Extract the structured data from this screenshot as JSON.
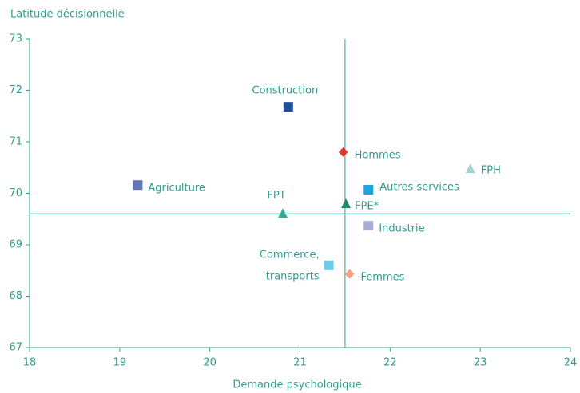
{
  "chart_data": {
    "type": "scatter",
    "y_label": "Latitude  décisionnelle",
    "x_label": "Demande psychologique",
    "xlim": [
      18,
      24
    ],
    "xticks": [
      18,
      19,
      20,
      21,
      22,
      23,
      24
    ],
    "ylim": [
      67,
      73
    ],
    "yticks": [
      67,
      68,
      69,
      70,
      71,
      72,
      73
    ],
    "vline": 21.5,
    "hline": 69.6,
    "points": [
      {
        "label": [
          "Construction"
        ],
        "x": 20.87,
        "y": 71.68,
        "marker": "square",
        "color": "#1f4e9a"
      },
      {
        "label": [
          "Hommes"
        ],
        "x": 21.48,
        "y": 70.8,
        "marker": "diamond",
        "color": "#e43b2f"
      },
      {
        "label": [
          "FPH"
        ],
        "x": 22.89,
        "y": 70.47,
        "marker": "triangle",
        "color": "#a3d2d2"
      },
      {
        "label": [
          "Agriculture"
        ],
        "x": 19.2,
        "y": 70.16,
        "marker": "square",
        "color": "#6276b8"
      },
      {
        "label": [
          "Autres services"
        ],
        "x": 21.76,
        "y": 70.07,
        "marker": "square",
        "color": "#1aa6e0"
      },
      {
        "label": [
          "FPT"
        ],
        "x": 20.81,
        "y": 69.6,
        "marker": "triangle",
        "color": "#3aa99a"
      },
      {
        "label": [
          "FPE*"
        ],
        "x": 21.51,
        "y": 69.79,
        "marker": "triangle",
        "color": "#1a8a6a"
      },
      {
        "label": [
          "Industrie"
        ],
        "x": 21.76,
        "y": 69.37,
        "marker": "square",
        "color": "#a9acd6"
      },
      {
        "label": [
          "Commerce,",
          "transports"
        ],
        "x": 21.32,
        "y": 68.6,
        "marker": "square",
        "color": "#6fcbea"
      },
      {
        "label": [
          "Femmes"
        ],
        "x": 21.55,
        "y": 68.43,
        "marker": "diamond",
        "color": "#f4a08a"
      }
    ]
  }
}
